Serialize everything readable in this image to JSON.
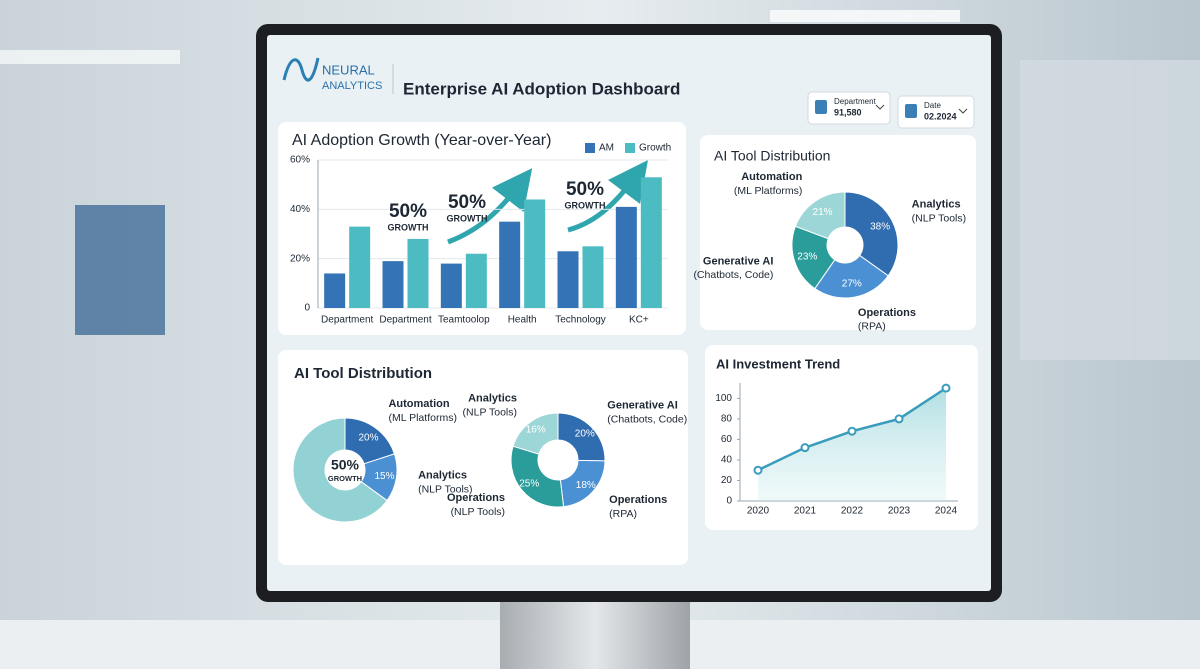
{
  "header": {
    "logo_top": "NEURAL",
    "logo_bottom": "ANALYTICS",
    "title": "Enterprise AI Adoption Dashboard"
  },
  "filters": [
    {
      "label": "Department",
      "value": "91,580"
    },
    {
      "label": "Date",
      "value": "02.2024"
    }
  ],
  "chart_data": [
    {
      "type": "bar",
      "title": "AI Adoption Growth (Year-over-Year)",
      "categories": [
        "Department",
        "Department",
        "Teamtoolop",
        "Health",
        "Technology",
        "KC+"
      ],
      "series": [
        {
          "name": "AM",
          "color": "#3473b5",
          "values": [
            14,
            19,
            18,
            35,
            23,
            41
          ]
        },
        {
          "name": "Growth",
          "color": "#4dbcc2",
          "values": [
            33,
            28,
            22,
            44,
            25,
            53
          ]
        }
      ],
      "ylim": [
        0,
        60
      ],
      "yticks": [
        0,
        {
          "value": 20,
          "label": "20%"
        },
        {
          "value": 40,
          "label": "40%"
        },
        {
          "value": 60,
          "label": "60%"
        }
      ],
      "grid": true,
      "legend": "top-right",
      "annotations": [
        {
          "text": "50%",
          "note": "GROWTH"
        },
        {
          "text": "50%",
          "note": "GROWTH"
        },
        {
          "text": "50%",
          "note": "GROWTH"
        }
      ]
    },
    {
      "type": "donut",
      "title": "AI Tool Distribution",
      "categories": [
        "Analytics",
        "Operations",
        "Generative AI",
        "Automation"
      ],
      "category_notes": [
        "(NLP Tools)",
        "(RPA)",
        "(Chatbots, Code)",
        "(ML Platforms)"
      ],
      "values": [
        38,
        27,
        23,
        21
      ],
      "value_labels": [
        "38%",
        "27%",
        "23%",
        "21%"
      ],
      "colors": [
        "#2f6cb0",
        "#4a90d2",
        "#2a9d9b",
        "#9dd6d7"
      ]
    },
    {
      "type": "donut",
      "title": "AI Tool Distribution",
      "categories": [
        "Automation",
        "Analytics",
        null
      ],
      "category_notes": [
        "(ML Platforms)",
        "(NLP Tools)",
        null
      ],
      "values": [
        20,
        15,
        65
      ],
      "value_labels": [
        "20%",
        "15%",
        null
      ],
      "colors": [
        "#2f6cb0",
        "#4a90d2",
        "#93d2d4"
      ],
      "center_text": "50%",
      "center_note": "GROWTH"
    },
    {
      "type": "donut",
      "categories": [
        "Generative AI",
        "Operations",
        "Operations",
        "Analytics"
      ],
      "category_notes": [
        "(Chatbots, Code)",
        "(RPA)",
        "(NLP Tools)",
        "(NLP Tools)"
      ],
      "values": [
        20,
        18,
        25,
        16
      ],
      "value_labels": [
        "20%",
        "18%",
        "25%",
        "16%"
      ],
      "colors": [
        "#2f6cb0",
        "#4a90d2",
        "#2a9d9b",
        "#9dd6d7"
      ]
    },
    {
      "type": "line",
      "title": "AI Investment Trend",
      "categories": [
        "2020",
        "2021",
        "2022",
        "2023",
        "2024"
      ],
      "series": [
        {
          "name": "Investment",
          "color": "#3a9cbc",
          "values": [
            30,
            52,
            68,
            80,
            110
          ]
        }
      ],
      "ylim": [
        0,
        115
      ],
      "yticks": [
        0,
        20,
        40,
        60,
        80,
        100
      ],
      "grid": false
    }
  ]
}
